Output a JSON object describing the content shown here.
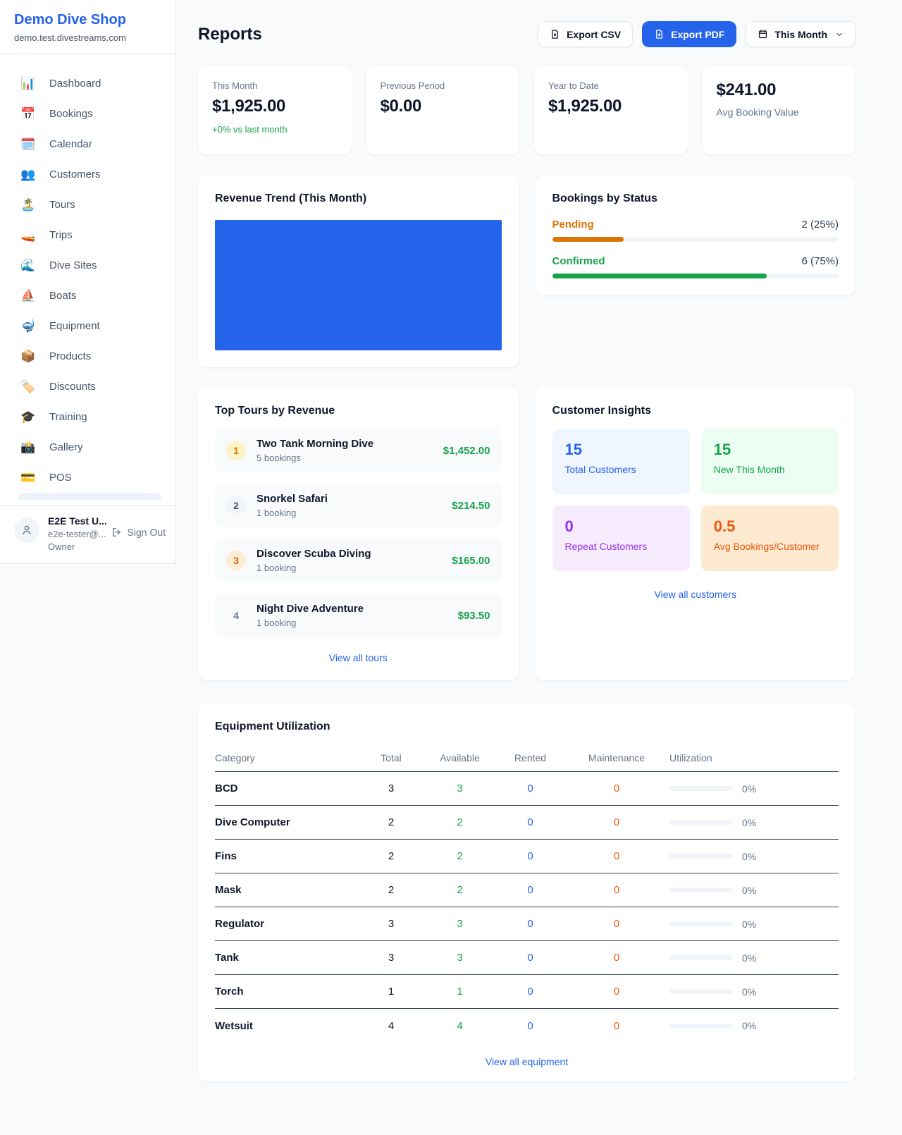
{
  "colors": {
    "accent": "#2563eb",
    "green": "#16a34a",
    "orange_pending": "#d97706",
    "orange_maintenance": "#ea580c",
    "purple": "#9333ea",
    "link": "#2563eb"
  },
  "sidebar": {
    "shop_name": "Demo Dive Shop",
    "shop_domain": "demo.test.divestreams.com",
    "items": [
      {
        "icon": "📊",
        "label": "Dashboard"
      },
      {
        "icon": "📅",
        "label": "Bookings"
      },
      {
        "icon": "🗓️",
        "label": "Calendar"
      },
      {
        "icon": "👥",
        "label": "Customers"
      },
      {
        "icon": "🏝️",
        "label": "Tours"
      },
      {
        "icon": "🚤",
        "label": "Trips"
      },
      {
        "icon": "🌊",
        "label": "Dive Sites"
      },
      {
        "icon": "⛵",
        "label": "Boats"
      },
      {
        "icon": "🤿",
        "label": "Equipment"
      },
      {
        "icon": "📦",
        "label": "Products"
      },
      {
        "icon": "🏷️",
        "label": "Discounts"
      },
      {
        "icon": "🎓",
        "label": "Training"
      },
      {
        "icon": "📸",
        "label": "Gallery"
      },
      {
        "icon": "💳",
        "label": "POS"
      }
    ],
    "user": {
      "name": "E2E Test U...",
      "email": "e2e-tester@...",
      "role": "Owner",
      "sign_out_label": "Sign Out"
    }
  },
  "header": {
    "title": "Reports",
    "export_csv_label": "Export CSV",
    "export_pdf_label": "Export PDF",
    "period_label": "This Month"
  },
  "stats": [
    {
      "label": "This Month",
      "value": "$1,925.00",
      "delta": "+0% vs last month"
    },
    {
      "label": "Previous Period",
      "value": "$0.00"
    },
    {
      "label": "Year to Date",
      "value": "$1,925.00"
    },
    {
      "label": "Avg Booking Value",
      "value": "$241.00"
    }
  ],
  "revenue_trend": {
    "title": "Revenue Trend (This Month)",
    "bar_color": "#2563eb",
    "bar_width": "100%"
  },
  "bookings_by_status": {
    "title": "Bookings by Status",
    "rows": [
      {
        "label": "Pending",
        "count": "2 (25%)",
        "pct": "25%",
        "color": "#d97706"
      },
      {
        "label": "Confirmed",
        "count": "6 (75%)",
        "pct": "75%",
        "color": "#16a34a"
      }
    ]
  },
  "top_tours": {
    "title": "Top Tours by Revenue",
    "items": [
      {
        "rank": "1",
        "name": "Two Tank Morning Dive",
        "bookings": "5 bookings",
        "amount": "$1,452.00",
        "badge_bg": "#fef3c7",
        "badge_color": "#d97706"
      },
      {
        "rank": "2",
        "name": "Snorkel Safari",
        "bookings": "1 booking",
        "amount": "$214.50",
        "badge_bg": "#f1f5f9",
        "badge_color": "#475569"
      },
      {
        "rank": "3",
        "name": "Discover Scuba Diving",
        "bookings": "1 booking",
        "amount": "$165.00",
        "badge_bg": "#ffedd5",
        "badge_color": "#ea580c"
      },
      {
        "rank": "4",
        "name": "Night Dive Adventure",
        "bookings": "1 booking",
        "amount": "$93.50",
        "badge_bg": "transparent",
        "badge_color": "#64748b"
      }
    ],
    "view_all": "View all tours"
  },
  "customer_insights": {
    "title": "Customer Insights",
    "tiles": [
      {
        "value": "15",
        "label": "Total Customers",
        "bg": "#eff6ff",
        "color": "#2563eb"
      },
      {
        "value": "15",
        "label": "New This Month",
        "bg": "#ecfdf3",
        "color": "#16a34a"
      },
      {
        "value": "0",
        "label": "Repeat Customers",
        "bg": "#f6ecfe",
        "color": "#9333ea"
      },
      {
        "value": "0.5",
        "label": "Avg Bookings/Customer",
        "bg": "#fde8d0",
        "color": "#ea580c"
      }
    ],
    "view_all": "View all customers"
  },
  "equipment": {
    "title": "Equipment Utilization",
    "columns": [
      "Category",
      "Total",
      "Available",
      "Rented",
      "Maintenance",
      "Utilization"
    ],
    "rows": [
      {
        "category": "BCD",
        "total": "3",
        "available": "3",
        "rented": "0",
        "maintenance": "0",
        "utilization": "0%",
        "util_pct": "0%"
      },
      {
        "category": "Dive Computer",
        "total": "2",
        "available": "2",
        "rented": "0",
        "maintenance": "0",
        "utilization": "0%",
        "util_pct": "0%"
      },
      {
        "category": "Fins",
        "total": "2",
        "available": "2",
        "rented": "0",
        "maintenance": "0",
        "utilization": "0%",
        "util_pct": "0%"
      },
      {
        "category": "Mask",
        "total": "2",
        "available": "2",
        "rented": "0",
        "maintenance": "0",
        "utilization": "0%",
        "util_pct": "0%"
      },
      {
        "category": "Regulator",
        "total": "3",
        "available": "3",
        "rented": "0",
        "maintenance": "0",
        "utilization": "0%",
        "util_pct": "0%"
      },
      {
        "category": "Tank",
        "total": "3",
        "available": "3",
        "rented": "0",
        "maintenance": "0",
        "utilization": "0%",
        "util_pct": "0%"
      },
      {
        "category": "Torch",
        "total": "1",
        "available": "1",
        "rented": "0",
        "maintenance": "0",
        "utilization": "0%",
        "util_pct": "0%"
      },
      {
        "category": "Wetsuit",
        "total": "4",
        "available": "4",
        "rented": "0",
        "maintenance": "0",
        "utilization": "0%",
        "util_pct": "0%"
      }
    ],
    "view_all": "View all equipment"
  }
}
